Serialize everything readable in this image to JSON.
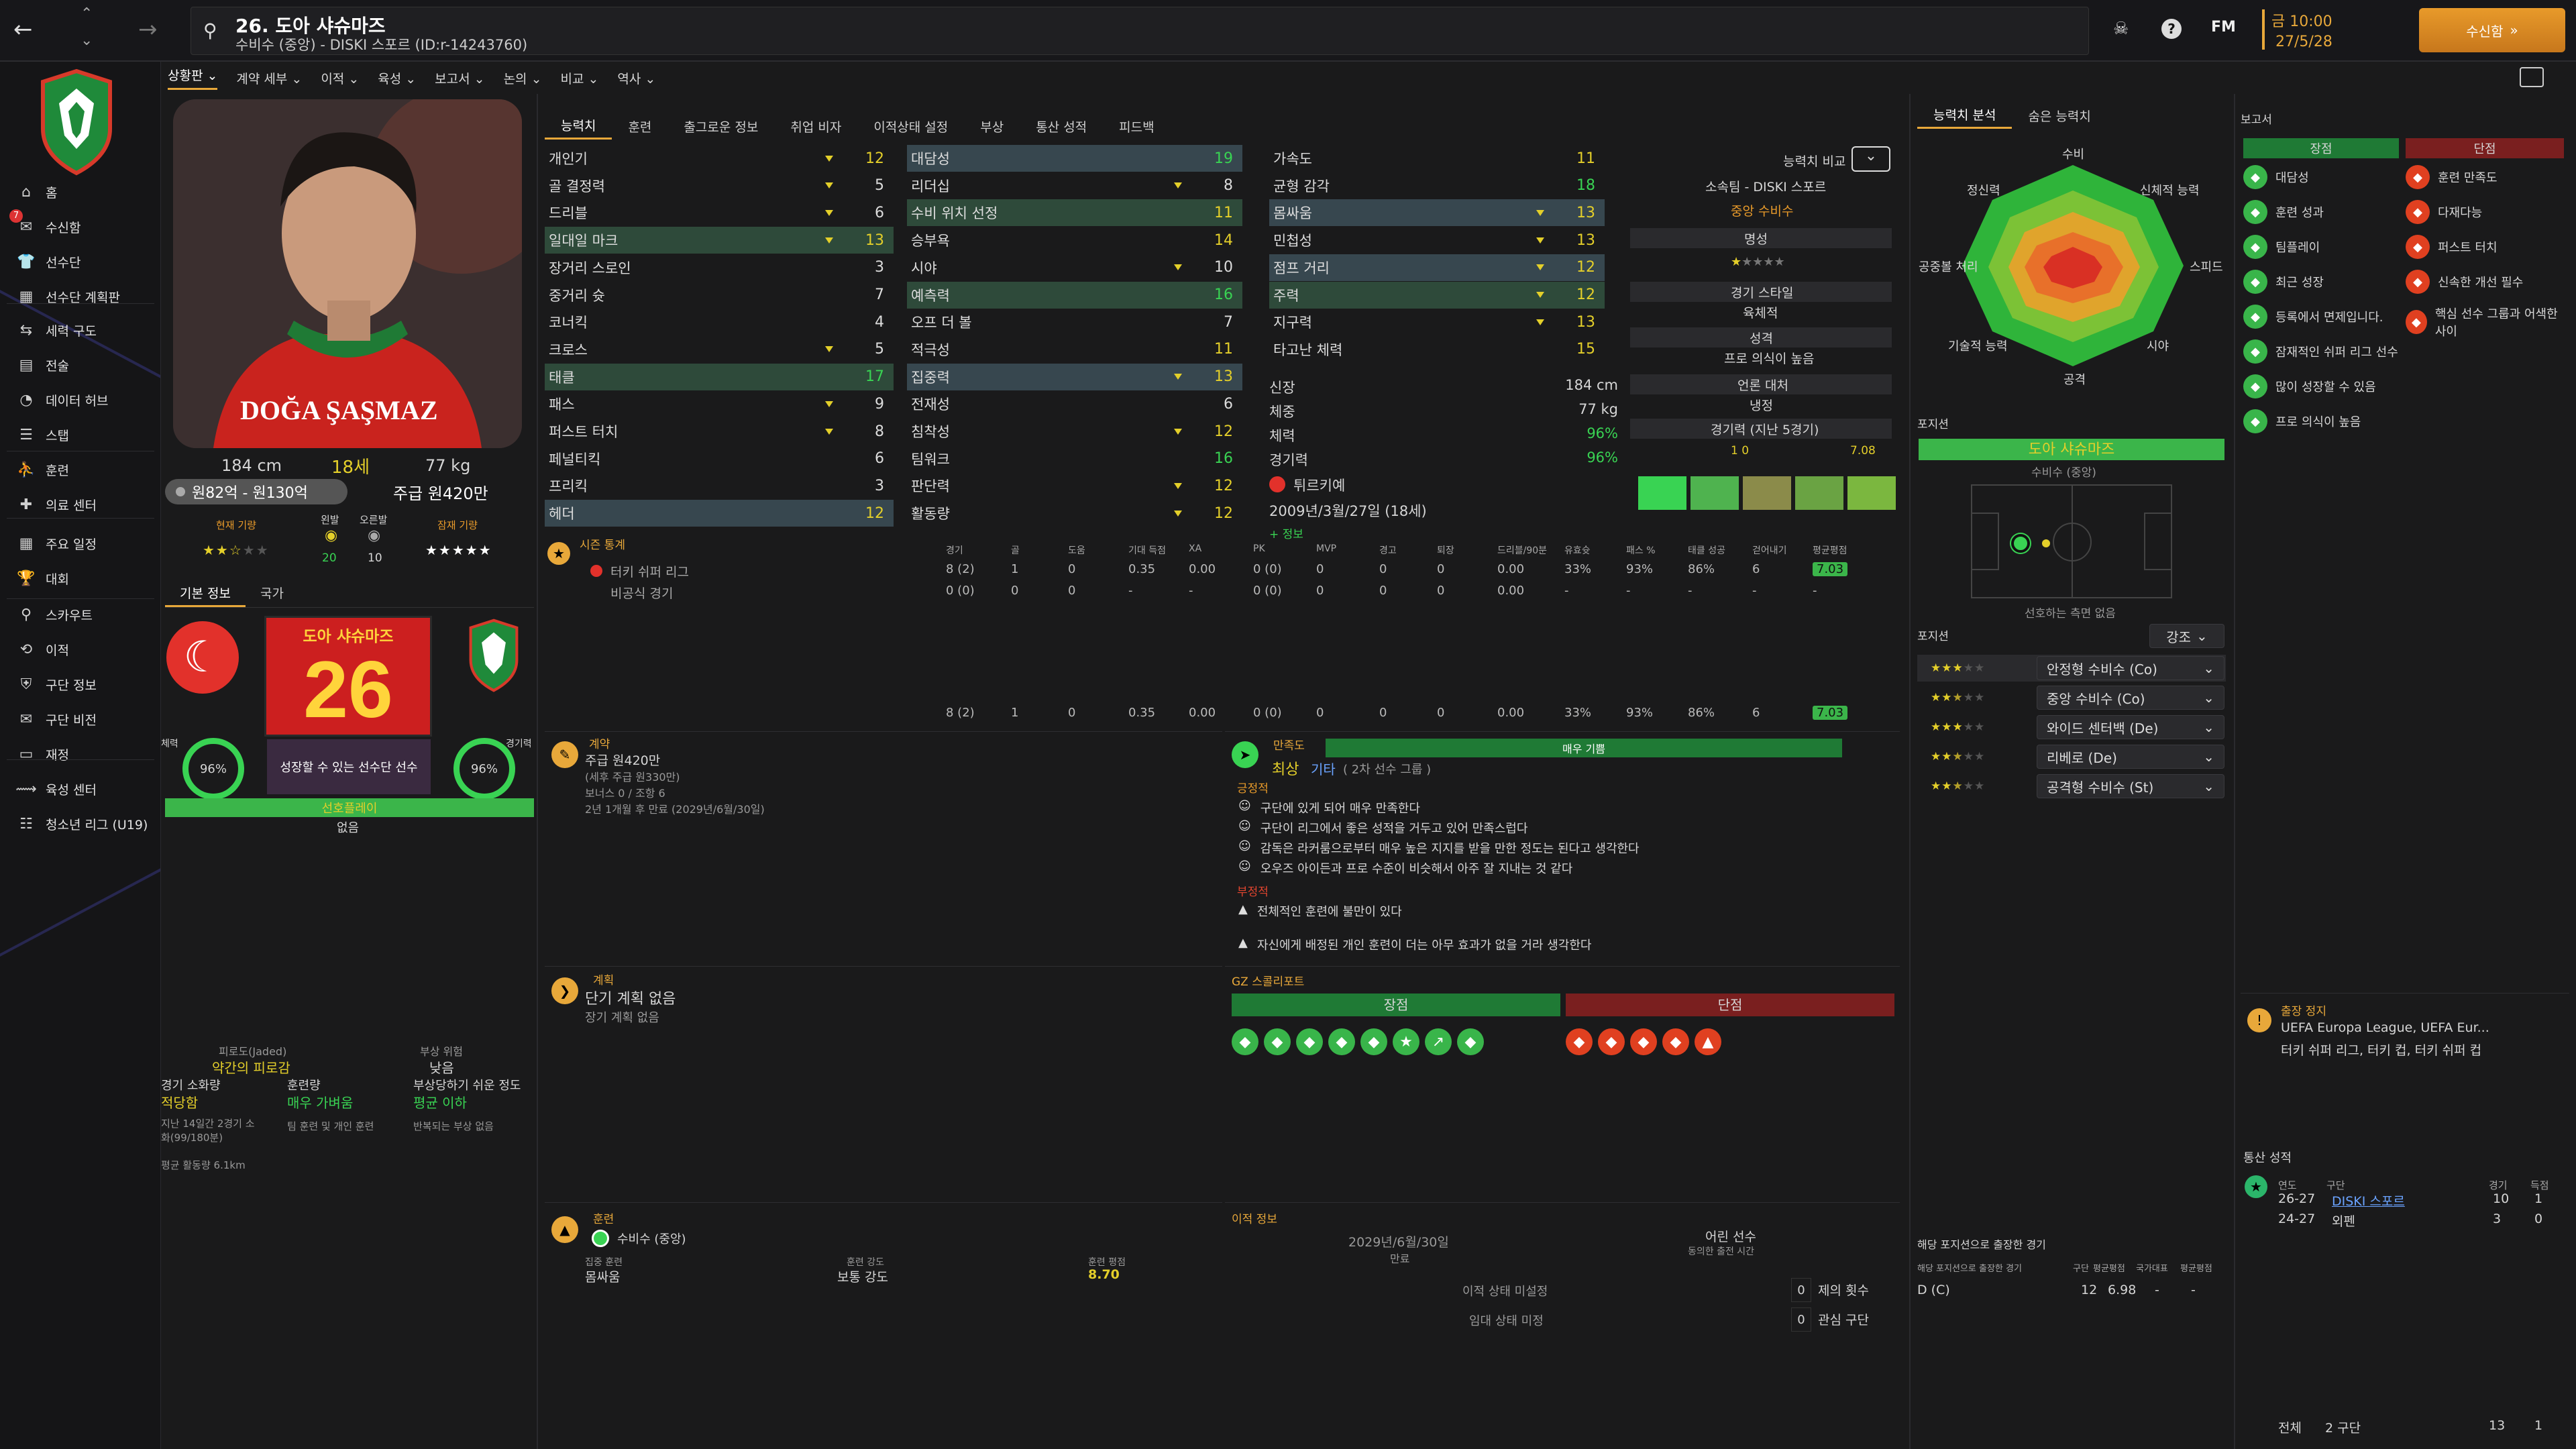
{
  "topbar": {
    "player_line": "26. 도아 샤슈마즈",
    "player_sub": "수비수 (중앙) - DISKI 스포르 (ID:r-14243760)",
    "fm_label": "FM",
    "date_time": "금 10:00",
    "date": "27/5/28",
    "continue_label": "수신함",
    "back_icon": "back-icon",
    "fwd_icon": "forward-icon"
  },
  "sidebar": {
    "items": [
      {
        "label": "홈",
        "icon": "⌂"
      },
      {
        "label": "수신함",
        "icon": "✉",
        "badge": "7"
      },
      {
        "label": "선수단",
        "icon": "👕"
      },
      {
        "label": "선수단 계획판",
        "icon": "▦"
      },
      {
        "label": "세력 구도",
        "icon": "⇆"
      },
      {
        "label": "전술",
        "icon": "▤"
      },
      {
        "label": "데이터 허브",
        "icon": "◔"
      },
      {
        "label": "스탭",
        "icon": "☰"
      },
      {
        "label": "훈련",
        "icon": "⛹"
      },
      {
        "label": "의료 센터",
        "icon": "✚"
      },
      {
        "label": "주요 일정",
        "icon": "▦"
      },
      {
        "label": "대회",
        "icon": "🏆"
      },
      {
        "label": "스카우트",
        "icon": "⚲"
      },
      {
        "label": "이적",
        "icon": "⟲"
      },
      {
        "label": "구단 정보",
        "icon": "⛨"
      },
      {
        "label": "구단 비전",
        "icon": "✉"
      },
      {
        "label": "재정",
        "icon": "▭"
      },
      {
        "label": "육성 센터",
        "icon": "⟿"
      },
      {
        "label": "청소년 리그 (U19)",
        "icon": "☷"
      }
    ]
  },
  "subnav": [
    "상황판 ⌄",
    "계약 세부 ⌄",
    "이적 ⌄",
    "육성 ⌄",
    "보고서 ⌄",
    "논의 ⌄",
    "비교 ⌄",
    "역사 ⌄"
  ],
  "profile": {
    "height": "184 cm",
    "age": "18세",
    "weight": "77 kg",
    "value": "원82억 - 원130억",
    "wage": "주급 원420만",
    "current_ability": "현재 기량",
    "left_foot": "왼발",
    "right_foot": "오른발",
    "left_val": "20",
    "right_val": "10",
    "potential": "잠재 기량",
    "shirt_name": "DOĞA ŞAŞMAZ"
  },
  "profile_tabs": [
    "기본 정보",
    "국가"
  ],
  "club_card": {
    "name": "도아 샤슈마즈",
    "number": "26",
    "condition_label": "체력",
    "condition": "96%",
    "sharpness_label": "경기력",
    "sharpness": "96%",
    "desc": "성장할 수 있는 선수단 선수",
    "status": "선호플레이",
    "status_sub": "없음"
  },
  "fatigue": {
    "jaded_label": "피로도(Jaded)",
    "jaded_val": "약간의 피로감",
    "injury_label": "부상 위험",
    "injury_val": "낮음",
    "load_label": "경기 소화량",
    "load_val": "적당함",
    "training_label": "훈련량",
    "training_val": "매우 가벼움",
    "prone_label": "부상당하기 쉬운 정도",
    "prone_val": "평균 이하",
    "load_note": "지난 14일간 2경기 소화(99/180분)",
    "training_note": "팀 훈련 및 개인 훈련",
    "prone_note": "반복되는 부상 없음",
    "dist_note": "평균 활동량 6.1km"
  },
  "attr_tabs": [
    "능력치",
    "훈련",
    "출그로운 정보",
    "취업 비자",
    "이적상태 설정",
    "부상",
    "통산 성적",
    "피드백"
  ],
  "attr_col1": [
    [
      "개인기",
      "12"
    ],
    [
      "골 결정력",
      "5"
    ],
    [
      "드리블",
      "6"
    ],
    [
      "일대일 마크",
      "13"
    ],
    [
      "장거리 스로인",
      "3"
    ],
    [
      "중거리 슛",
      "7"
    ],
    [
      "코너킥",
      "4"
    ],
    [
      "크로스",
      "5"
    ],
    [
      "태클",
      "17"
    ],
    [
      "패스",
      "9"
    ],
    [
      "퍼스트 터치",
      "8"
    ],
    [
      "페널티킥",
      "6"
    ],
    [
      "프리킥",
      "3"
    ],
    [
      "헤더",
      "12"
    ]
  ],
  "attr_col2": [
    [
      "대담성",
      "19"
    ],
    [
      "리더십",
      "8"
    ],
    [
      "수비 위치 선정",
      "11"
    ],
    [
      "승부욕",
      "14"
    ],
    [
      "시야",
      "10"
    ],
    [
      "예측력",
      "16"
    ],
    [
      "오프 더 볼",
      "7"
    ],
    [
      "적극성",
      "11"
    ],
    [
      "집중력",
      "13"
    ],
    [
      "전재성",
      "6"
    ],
    [
      "침착성",
      "12"
    ],
    [
      "팀워크",
      "16"
    ],
    [
      "판단력",
      "12"
    ],
    [
      "활동량",
      "12"
    ]
  ],
  "attr_col3": [
    [
      "가속도",
      "11"
    ],
    [
      "균형 감각",
      "18"
    ],
    [
      "몸싸움",
      "13"
    ],
    [
      "민첩성",
      "13"
    ],
    [
      "점프 거리",
      "12"
    ],
    [
      "주력",
      "12"
    ],
    [
      "지구력",
      "13"
    ],
    [
      "타고난 체력",
      "15"
    ]
  ],
  "phys": {
    "height_l": "신장",
    "height_v": "184 cm",
    "weight_l": "체중",
    "weight_v": "77 kg",
    "cond_l": "체력",
    "cond_v": "96%",
    "sharp_l": "경기력",
    "sharp_v": "96%",
    "nation": "튀르키예",
    "dob": "2009년/3월/27일 (18세)",
    "more": "+ 정보"
  },
  "info_col": {
    "compare": "능력치 비교",
    "club": "소속팀 - DISKI 스포르",
    "position": "중앙 수비수",
    "rep_l": "명성",
    "style_l": "경기 스타일",
    "style_v": "육체적",
    "pers_l": "성격",
    "pers_v": "프로 의식이 높음",
    "media_l": "언론 대처",
    "media_v": "냉정",
    "form_l": "경기력 (지난 5경기)",
    "form_rating": "7.08",
    "form_stats": "1   0"
  },
  "stats": {
    "title": "시즌 통계",
    "headers": [
      "경기",
      "골",
      "도움",
      "기대 득점",
      "XA",
      "PK",
      "MVP",
      "경고",
      "퇴장",
      "드리블/90분",
      "유효슛",
      "패스 %",
      "태클 성공",
      "걷어내기",
      "평균평점"
    ],
    "rows": [
      {
        "name": "터키 쉬퍼 리그",
        "vals": [
          "8 (2)",
          "1",
          "0",
          "0.35",
          "0.00",
          "0 (0)",
          "0",
          "0",
          "0",
          "0.00",
          "33%",
          "93%",
          "86%",
          "6",
          "7.03"
        ]
      },
      {
        "name": "비공식 경기",
        "vals": [
          "0 (0)",
          "0",
          "0",
          "-",
          "-",
          "0 (0)",
          "0",
          "0",
          "0",
          "0.00",
          "-",
          "-",
          "-",
          "-",
          "-"
        ]
      }
    ],
    "totals": [
      "8 (2)",
      "1",
      "0",
      "0.35",
      "0.00",
      "0 (0)",
      "0",
      "0",
      "0",
      "0.00",
      "33%",
      "93%",
      "86%",
      "6",
      "7.03"
    ]
  },
  "contract": {
    "title": "계약",
    "wage": "주급 원420만",
    "wage_sub": "(세후 주급 원330만)",
    "bonus": "보너스 0 / 조항 6",
    "expiry": "2년 1개월 후 만료 (2029년/6월/30일)"
  },
  "plan": {
    "title": "계획",
    "value": "단기 계획 없음",
    "sub": "장기 계획 없음"
  },
  "training": {
    "title": "훈련",
    "position": "수비수 (중앙)",
    "focus_l": "집중 훈련",
    "focus_v": "몸싸움",
    "intensity_l": "훈련 강도",
    "intensity_v": "보통 강도",
    "rating_l": "훈련 평점",
    "rating_v": "8.70"
  },
  "happiness": {
    "title": "만족도",
    "bar_label": "매우 기쁨",
    "level": "최상",
    "role": "기타",
    "role_sub": "( 2차 선수 그룹 )",
    "pos_title": "긍정적",
    "positives": [
      "구단에 있게 되어 매우 만족한다",
      "구단이 리그에서 좋은 성적을 거두고 있어 만족스럽다",
      "감독은 라커룸으로부터 매우 높은 지지를 받을 만한 정도는 된다고 생각한다",
      "오우즈 아이든과 프로 수준이 비슷해서 아주 잘 지내는 것 같다"
    ],
    "neg_title": "부정적",
    "negatives": [
      "전체적인 훈련에 불만이 있다",
      "자신에게 배정된 개인 훈련이 더는 아무 효과가 없을 거라 생각한다"
    ]
  },
  "gz": {
    "title": "GZ 스콜리포트",
    "strengths": "장점",
    "weaknesses": "단점"
  },
  "transfer": {
    "title": "이적 정보",
    "date": "2029년/6월/30일",
    "date_l": "만료",
    "youth": "어린 선수",
    "youth_sub": "동의한 출전 시간",
    "status": "이적 상태 미설정",
    "loan": "임대 상태 미정",
    "offers_n": "0",
    "offers_l": "제의 횟수",
    "int_n": "0",
    "int_l": "관심 구단"
  },
  "radar": {
    "tabs": [
      "능력치 분석",
      "숨은 능력치"
    ],
    "labels": [
      "수비",
      "신체적 능력",
      "스피드",
      "시야",
      "공격",
      "기술적 능력",
      "공중볼 처리",
      "정신력"
    ]
  },
  "position": {
    "title": "포지션",
    "name": "도아 샤슈마즈",
    "sub": "수비수 (중앙)",
    "pitch_note": "선호하는 측면 없음",
    "roles_title": "포지션",
    "roles_btn": "강조",
    "roles": [
      "안정형 수비수 (Co)",
      "중앙 수비수 (Co)",
      "와이드 센터백 (De)",
      "리베로 (De)",
      "공격형 수비수 (St)"
    ]
  },
  "pos_games": {
    "title": "해당 포지션으로 출장한 경기",
    "hdr": [
      "해당 포지션으로 출장한 경기",
      "구단",
      "평균평점",
      "국가대표",
      "평균평점"
    ],
    "row": [
      "D (C)",
      "12",
      "6.98",
      "-",
      "-"
    ]
  },
  "report": {
    "title": "보고서",
    "pros": "장점",
    "cons": "단점",
    "pro_items": [
      "대담성",
      "훈련 성과",
      "팀플레이",
      "최근 성장",
      "등록에서 면제입니다.",
      "잠재적인 쉬퍼 리그 선수",
      "많이 성장할 수 있음",
      "프로 의식이 높음"
    ],
    "con_items": [
      "훈련 만족도",
      "다재다능",
      "퍼스트 터치",
      "신속한 개선 필수",
      "핵심 선수 그룹과 어색한 사이"
    ]
  },
  "suspension": {
    "title": "출장 정지",
    "lines": [
      "UEFA Europa League, UEFA Eur...",
      "터키 쉬퍼 리그, 터키 컵, 터키 쉬퍼 컵"
    ]
  },
  "career": {
    "title": "통산 성적",
    "hdr": [
      "연도",
      "구단",
      "경기",
      "득점"
    ],
    "rows": [
      [
        "26-27",
        "DISKI 스포르",
        "10",
        "1"
      ],
      [
        "24-27",
        "외펜",
        "3",
        "0"
      ]
    ],
    "total": [
      "전체",
      "2 구단",
      "13",
      "1"
    ]
  }
}
